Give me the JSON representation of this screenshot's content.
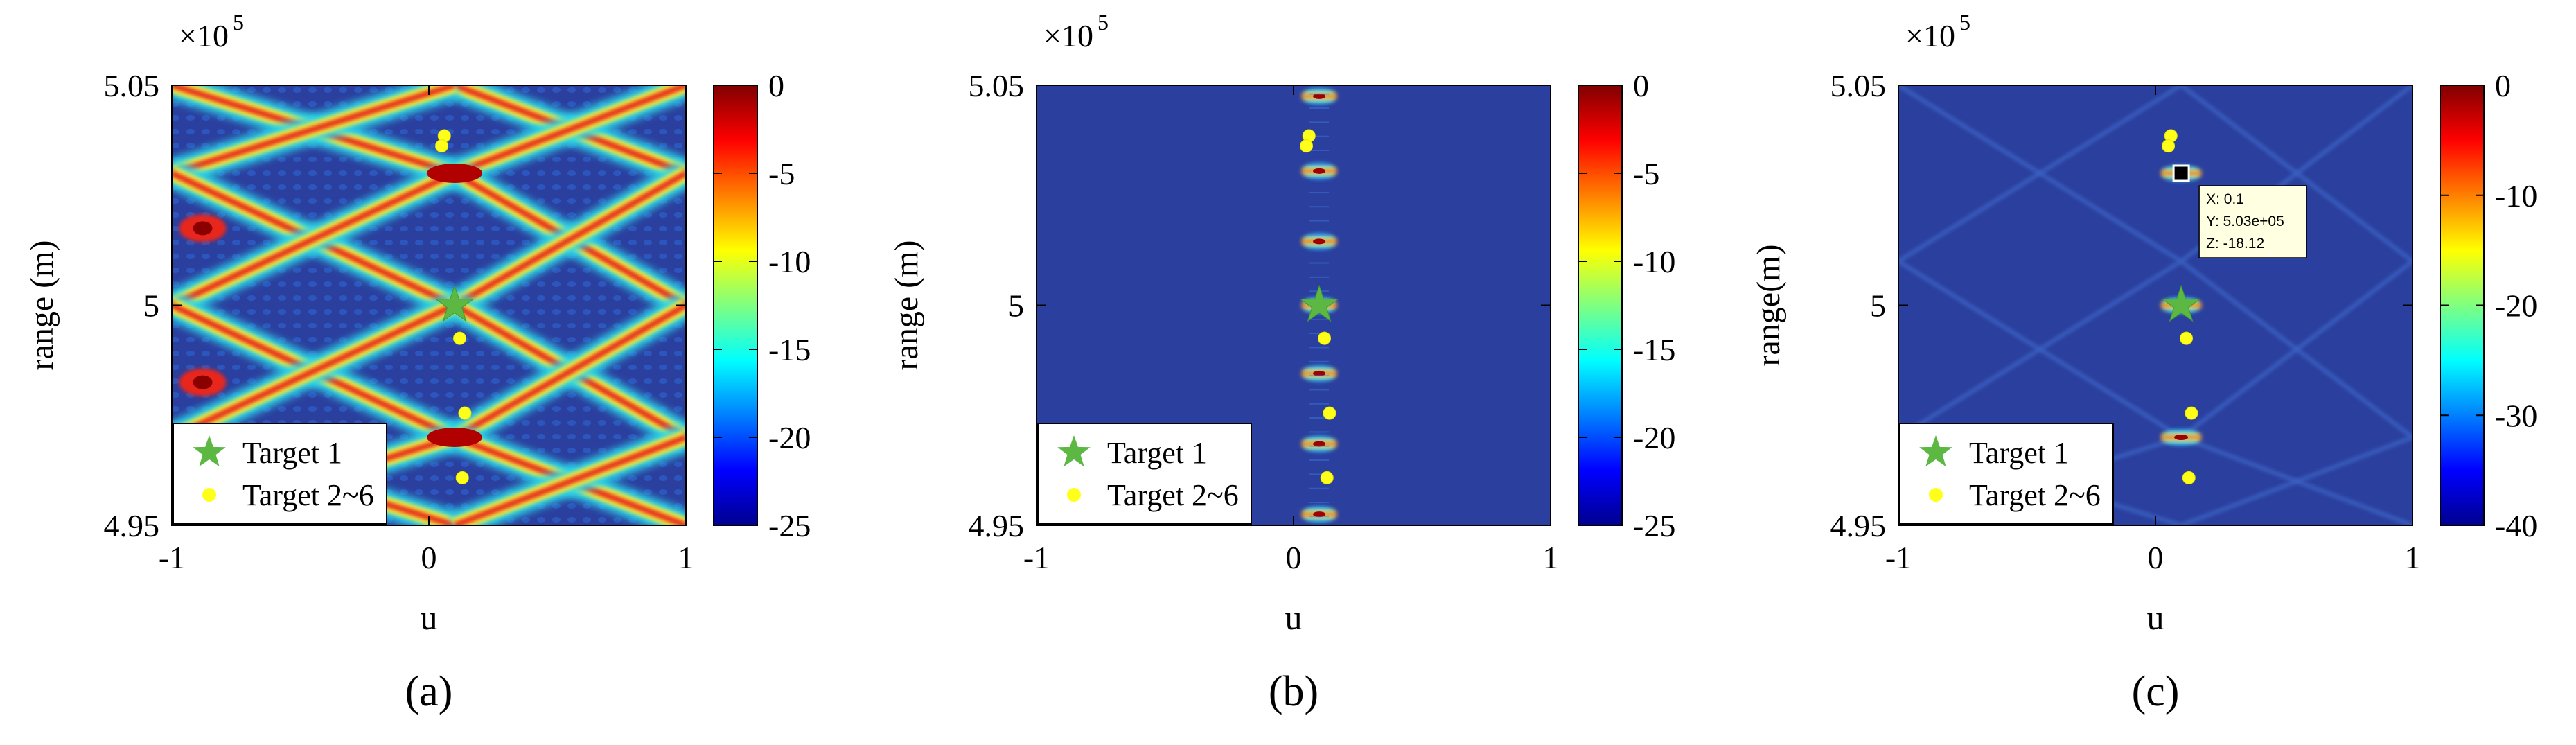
{
  "chart_data": [
    {
      "type": "heatmap",
      "panel_label": "(a)",
      "xlabel": "u",
      "ylabel": "range (m)",
      "xlim": [
        -1,
        1
      ],
      "ylim": [
        4.95,
        5.05
      ],
      "y_scale_note": "×10",
      "y_scale_exp": "5",
      "x_ticks": [
        "-1",
        "0",
        "1"
      ],
      "y_ticks": [
        "4.95",
        "5",
        "5.05"
      ],
      "colorbar": {
        "limits": [
          -25,
          0
        ],
        "ticks": [
          "0",
          "-5",
          "-10",
          "-15",
          "-20",
          "-25"
        ]
      },
      "pattern": "high-sidelobe",
      "targets": [
        {
          "name": "Target 1",
          "u": 0.1,
          "range": 5.0
        }
      ],
      "other_targets": [
        {
          "u": 0.06,
          "range": 5.0385
        },
        {
          "u": 0.05,
          "range": 5.0362
        },
        {
          "u": 0.12,
          "range": 4.9925
        },
        {
          "u": 0.14,
          "range": 4.9755
        },
        {
          "u": 0.13,
          "range": 4.9608
        }
      ],
      "legend": {
        "position": "bottom-left",
        "entries": [
          "Target 1",
          "Target 2~6"
        ]
      }
    },
    {
      "type": "heatmap",
      "panel_label": "(b)",
      "xlabel": "u",
      "ylabel": "range (m)",
      "xlim": [
        -1,
        1
      ],
      "ylim": [
        4.95,
        5.05
      ],
      "y_scale_note": "×10",
      "y_scale_exp": "5",
      "x_ticks": [
        "-1",
        "0",
        "1"
      ],
      "y_ticks": [
        "4.95",
        "5",
        "5.05"
      ],
      "colorbar": {
        "limits": [
          -25,
          0
        ],
        "ticks": [
          "0",
          "-5",
          "-10",
          "-15",
          "-20",
          "-25"
        ]
      },
      "pattern": "focused",
      "targets": [
        {
          "name": "Target 1",
          "u": 0.1,
          "range": 5.0
        }
      ],
      "other_targets": [
        {
          "u": 0.06,
          "range": 5.0385
        },
        {
          "u": 0.05,
          "range": 5.0362
        },
        {
          "u": 0.12,
          "range": 4.9925
        },
        {
          "u": 0.14,
          "range": 4.9755
        },
        {
          "u": 0.13,
          "range": 4.9608
        }
      ],
      "legend": {
        "position": "bottom-left",
        "entries": [
          "Target 1",
          "Target 2~6"
        ]
      }
    },
    {
      "type": "heatmap",
      "panel_label": "(c)",
      "xlabel": "u",
      "ylabel": "range(m)",
      "xlim": [
        -1,
        1
      ],
      "ylim": [
        4.95,
        5.05
      ],
      "y_scale_note": "×10",
      "y_scale_exp": "5",
      "x_ticks": [
        "-1",
        "0",
        "1"
      ],
      "y_ticks": [
        "4.95",
        "5",
        "5.05"
      ],
      "colorbar": {
        "limits": [
          -40,
          0
        ],
        "ticks": [
          "0",
          "-10",
          "-20",
          "-30",
          "-40"
        ]
      },
      "pattern": "low-sidelobe",
      "targets": [
        {
          "name": "Target 1",
          "u": 0.1,
          "range": 5.0
        }
      ],
      "other_targets": [
        {
          "u": 0.06,
          "range": 5.0385
        },
        {
          "u": 0.05,
          "range": 5.0362
        },
        {
          "u": 0.12,
          "range": 4.9925
        },
        {
          "u": 0.14,
          "range": 4.9755
        },
        {
          "u": 0.13,
          "range": 4.9608
        }
      ],
      "datatip": {
        "u": 0.1,
        "range": 5.03,
        "lines": [
          "X: 0.1",
          "Y: 5.03e+05",
          "Z: -18.12"
        ]
      },
      "legend": {
        "position": "bottom-left",
        "entries": [
          "Target 1",
          "Target 2~6"
        ]
      }
    }
  ]
}
